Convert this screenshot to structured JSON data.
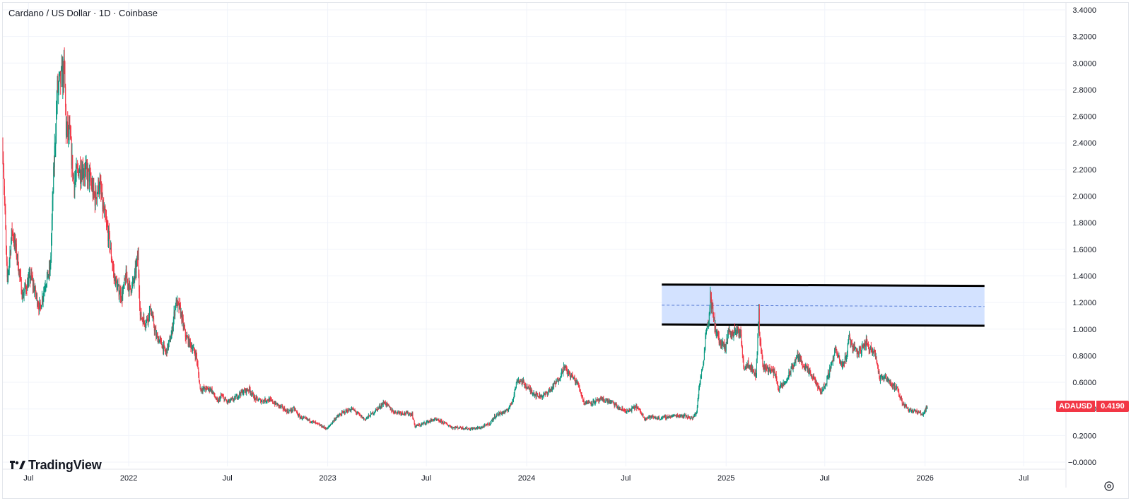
{
  "header": {
    "title": "Cardano / US Dollar · 1D · Coinbase",
    "symbol": "ADAUSD",
    "last_price": "0.4190"
  },
  "branding": {
    "logo_text": "TradingView",
    "logo_icon": "tradingview-logo-icon"
  },
  "controls": {
    "settings_icon": "gear-icon"
  },
  "colors": {
    "up": "#089981",
    "down": "#f23645",
    "grid": "#f0f3fa",
    "zone_fill": "#d1e0ff",
    "zone_border": "#000000",
    "zone_mid": "#5b7fd6",
    "axis_text": "#131722"
  },
  "chart_data": {
    "type": "candlestick",
    "symbol": "ADAUSD",
    "interval": "1D",
    "exchange": "Coinbase",
    "y_axis": {
      "position": "right",
      "range": [
        -0.05,
        3.42
      ],
      "tick_labels": [
        "3.4000",
        "3.2000",
        "3.0000",
        "2.8000",
        "2.6000",
        "2.4000",
        "2.2000",
        "2.0000",
        "1.8000",
        "1.6000",
        "1.4000",
        "1.2000",
        "1.0000",
        "0.8000",
        "0.6000",
        "0.4000",
        "0.2000",
        "−0.0000"
      ],
      "tick_values": [
        3.4,
        3.2,
        3.0,
        2.8,
        2.6,
        2.4,
        2.2,
        2.0,
        1.8,
        1.6,
        1.4,
        1.2,
        1.0,
        0.8,
        0.6,
        0.4,
        0.2,
        0.0
      ]
    },
    "x_axis": {
      "range": [
        "2021-05-15",
        "2026-10-28"
      ],
      "ticks": [
        {
          "date": "2021-07-01",
          "label": "Jul"
        },
        {
          "date": "2022-01-01",
          "label": "2022"
        },
        {
          "date": "2022-07-01",
          "label": "Jul"
        },
        {
          "date": "2023-01-01",
          "label": "2023"
        },
        {
          "date": "2023-07-01",
          "label": "Jul"
        },
        {
          "date": "2024-01-01",
          "label": "2024"
        },
        {
          "date": "2024-07-01",
          "label": "Jul"
        },
        {
          "date": "2025-01-01",
          "label": "2025"
        },
        {
          "date": "2025-07-01",
          "label": "Jul"
        },
        {
          "date": "2026-01-01",
          "label": "2026"
        },
        {
          "date": "2026-07-01",
          "label": "Jul"
        }
      ]
    },
    "grid": true,
    "price_path": [
      [
        "2021-05-15",
        2.35
      ],
      [
        "2021-05-23",
        1.35
      ],
      [
        "2021-06-01",
        1.75
      ],
      [
        "2021-06-10",
        1.55
      ],
      [
        "2021-06-20",
        1.25
      ],
      [
        "2021-06-25",
        1.3
      ],
      [
        "2021-07-05",
        1.4
      ],
      [
        "2021-07-15",
        1.25
      ],
      [
        "2021-07-22",
        1.15
      ],
      [
        "2021-08-01",
        1.35
      ],
      [
        "2021-08-10",
        1.45
      ],
      [
        "2021-08-16",
        2.15
      ],
      [
        "2021-08-23",
        2.8
      ],
      [
        "2021-09-01",
        2.9
      ],
      [
        "2021-09-05",
        2.95
      ],
      [
        "2021-09-08",
        2.5
      ],
      [
        "2021-09-15",
        2.45
      ],
      [
        "2021-09-22",
        2.1
      ],
      [
        "2021-10-01",
        2.2
      ],
      [
        "2021-10-10",
        2.2
      ],
      [
        "2021-10-20",
        2.15
      ],
      [
        "2021-10-31",
        1.98
      ],
      [
        "2021-11-08",
        2.1
      ],
      [
        "2021-11-15",
        1.9
      ],
      [
        "2021-11-25",
        1.7
      ],
      [
        "2021-12-05",
        1.4
      ],
      [
        "2021-12-12",
        1.3
      ],
      [
        "2021-12-20",
        1.25
      ],
      [
        "2021-12-27",
        1.4
      ],
      [
        "2022-01-03",
        1.3
      ],
      [
        "2022-01-10",
        1.35
      ],
      [
        "2022-01-18",
        1.55
      ],
      [
        "2022-01-22",
        1.1
      ],
      [
        "2022-02-01",
        1.05
      ],
      [
        "2022-02-10",
        1.15
      ],
      [
        "2022-02-20",
        0.95
      ],
      [
        "2022-03-01",
        0.9
      ],
      [
        "2022-03-10",
        0.82
      ],
      [
        "2022-03-20",
        0.95
      ],
      [
        "2022-03-28",
        1.2
      ],
      [
        "2022-04-05",
        1.15
      ],
      [
        "2022-04-15",
        0.95
      ],
      [
        "2022-04-25",
        0.88
      ],
      [
        "2022-05-05",
        0.8
      ],
      [
        "2022-05-12",
        0.55
      ],
      [
        "2022-05-20",
        0.55
      ],
      [
        "2022-06-01",
        0.55
      ],
      [
        "2022-06-13",
        0.45
      ],
      [
        "2022-06-20",
        0.5
      ],
      [
        "2022-07-01",
        0.45
      ],
      [
        "2022-07-15",
        0.48
      ],
      [
        "2022-07-25",
        0.52
      ],
      [
        "2022-08-10",
        0.55
      ],
      [
        "2022-08-20",
        0.48
      ],
      [
        "2022-09-01",
        0.46
      ],
      [
        "2022-09-15",
        0.47
      ],
      [
        "2022-10-01",
        0.43
      ],
      [
        "2022-10-20",
        0.38
      ],
      [
        "2022-11-01",
        0.4
      ],
      [
        "2022-11-10",
        0.34
      ],
      [
        "2022-12-01",
        0.31
      ],
      [
        "2022-12-31",
        0.25
      ],
      [
        "2023-01-15",
        0.33
      ],
      [
        "2023-02-01",
        0.38
      ],
      [
        "2023-02-15",
        0.4
      ],
      [
        "2023-03-10",
        0.32
      ],
      [
        "2023-03-25",
        0.37
      ],
      [
        "2023-04-15",
        0.45
      ],
      [
        "2023-05-01",
        0.38
      ],
      [
        "2023-05-20",
        0.37
      ],
      [
        "2023-06-05",
        0.36
      ],
      [
        "2023-06-10",
        0.27
      ],
      [
        "2023-06-20",
        0.28
      ],
      [
        "2023-07-01",
        0.3
      ],
      [
        "2023-07-15",
        0.32
      ],
      [
        "2023-08-01",
        0.3
      ],
      [
        "2023-08-18",
        0.26
      ],
      [
        "2023-09-01",
        0.26
      ],
      [
        "2023-09-20",
        0.25
      ],
      [
        "2023-10-10",
        0.26
      ],
      [
        "2023-10-25",
        0.29
      ],
      [
        "2023-11-05",
        0.35
      ],
      [
        "2023-11-15",
        0.37
      ],
      [
        "2023-11-25",
        0.38
      ],
      [
        "2023-12-05",
        0.45
      ],
      [
        "2023-12-15",
        0.62
      ],
      [
        "2023-12-25",
        0.6
      ],
      [
        "2024-01-05",
        0.55
      ],
      [
        "2024-01-20",
        0.5
      ],
      [
        "2024-02-01",
        0.5
      ],
      [
        "2024-02-15",
        0.55
      ],
      [
        "2024-02-28",
        0.62
      ],
      [
        "2024-03-10",
        0.72
      ],
      [
        "2024-03-15",
        0.68
      ],
      [
        "2024-03-25",
        0.64
      ],
      [
        "2024-04-05",
        0.58
      ],
      [
        "2024-04-15",
        0.45
      ],
      [
        "2024-05-01",
        0.45
      ],
      [
        "2024-05-20",
        0.47
      ],
      [
        "2024-06-05",
        0.45
      ],
      [
        "2024-06-20",
        0.4
      ],
      [
        "2024-07-05",
        0.38
      ],
      [
        "2024-07-20",
        0.42
      ],
      [
        "2024-08-05",
        0.33
      ],
      [
        "2024-08-15",
        0.34
      ],
      [
        "2024-09-01",
        0.33
      ],
      [
        "2024-09-15",
        0.34
      ],
      [
        "2024-10-01",
        0.35
      ],
      [
        "2024-10-15",
        0.35
      ],
      [
        "2024-11-01",
        0.33
      ],
      [
        "2024-11-08",
        0.38
      ],
      [
        "2024-11-12",
        0.55
      ],
      [
        "2024-11-20",
        0.75
      ],
      [
        "2024-11-25",
        0.98
      ],
      [
        "2024-12-01",
        1.1
      ],
      [
        "2024-12-03",
        1.25
      ],
      [
        "2024-12-10",
        1.05
      ],
      [
        "2024-12-20",
        0.9
      ],
      [
        "2024-12-31",
        0.85
      ],
      [
        "2025-01-05",
        1.0
      ],
      [
        "2025-01-10",
        0.95
      ],
      [
        "2025-01-20",
        1.0
      ],
      [
        "2025-01-28",
        0.95
      ],
      [
        "2025-02-03",
        0.7
      ],
      [
        "2025-02-10",
        0.75
      ],
      [
        "2025-02-25",
        0.65
      ],
      [
        "2025-03-02",
        1.15
      ],
      [
        "2025-03-03",
        0.95
      ],
      [
        "2025-03-10",
        0.72
      ],
      [
        "2025-03-20",
        0.7
      ],
      [
        "2025-04-01",
        0.67
      ],
      [
        "2025-04-07",
        0.55
      ],
      [
        "2025-04-20",
        0.6
      ],
      [
        "2025-05-01",
        0.7
      ],
      [
        "2025-05-12",
        0.8
      ],
      [
        "2025-05-20",
        0.75
      ],
      [
        "2025-06-01",
        0.68
      ],
      [
        "2025-06-15",
        0.6
      ],
      [
        "2025-06-22",
        0.53
      ],
      [
        "2025-07-01",
        0.57
      ],
      [
        "2025-07-14",
        0.75
      ],
      [
        "2025-07-20",
        0.85
      ],
      [
        "2025-08-01",
        0.72
      ],
      [
        "2025-08-10",
        0.8
      ],
      [
        "2025-08-14",
        0.95
      ],
      [
        "2025-08-20",
        0.88
      ],
      [
        "2025-09-01",
        0.82
      ],
      [
        "2025-09-15",
        0.9
      ],
      [
        "2025-09-22",
        0.85
      ],
      [
        "2025-10-01",
        0.84
      ],
      [
        "2025-10-10",
        0.62
      ],
      [
        "2025-10-20",
        0.65
      ],
      [
        "2025-11-01",
        0.58
      ],
      [
        "2025-11-10",
        0.55
      ],
      [
        "2025-11-20",
        0.45
      ],
      [
        "2025-12-01",
        0.4
      ],
      [
        "2025-12-15",
        0.38
      ],
      [
        "2025-12-28",
        0.36
      ],
      [
        "2026-01-05",
        0.42
      ]
    ],
    "annotations": [
      {
        "type": "rectangle_zone",
        "date_start": "2024-09-05",
        "date_end": "2026-04-20",
        "top": [
          1.335,
          1.325
        ],
        "bottom": [
          1.035,
          1.025
        ],
        "midline": 1.18
      }
    ],
    "last_price_label": "0.4190"
  }
}
